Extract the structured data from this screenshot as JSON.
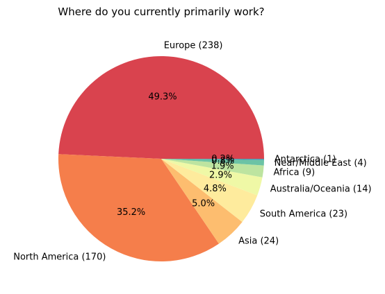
{
  "chart_data": {
    "type": "pie",
    "title": "Where do you currently primarily work?",
    "slices": [
      {
        "label": "Europe (238)",
        "value": 238,
        "pct_label": "49.3%",
        "color": "#d9434e"
      },
      {
        "label": "North America (170)",
        "value": 170,
        "pct_label": "35.2%",
        "color": "#f57e4b"
      },
      {
        "label": "Asia (24)",
        "value": 24,
        "pct_label": "5.0%",
        "color": "#fdbd6f"
      },
      {
        "label": "South America (23)",
        "value": 23,
        "pct_label": "4.8%",
        "color": "#feeb9d"
      },
      {
        "label": "Australia/Oceania (14)",
        "value": 14,
        "pct_label": "2.9%",
        "color": "#eff8a6"
      },
      {
        "label": "Africa (9)",
        "value": 9,
        "pct_label": "1.9%",
        "color": "#bde4a0"
      },
      {
        "label": "Near/Middle East (4)",
        "value": 4,
        "pct_label": "0.8%",
        "color": "#6cc3a5"
      },
      {
        "label": "Antarctica (1)",
        "value": 1,
        "pct_label": "0.2%",
        "color": "#4e9eb2"
      }
    ],
    "start_angle_deg": 0,
    "direction": "counterclockwise",
    "legend": "none"
  }
}
